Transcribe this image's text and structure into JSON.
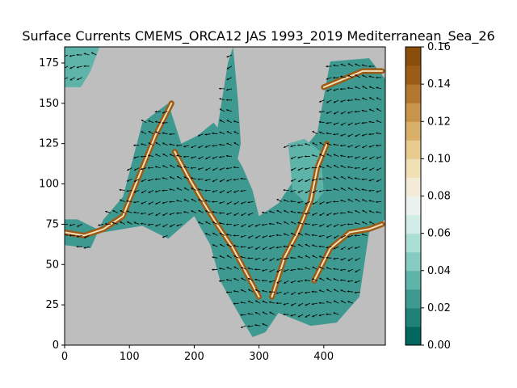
{
  "chart_data": {
    "type": "heatmap",
    "title": "Surface Currents CMEMS_ORCA12 JAS 1993_2019 Mediterranean_Sea_26",
    "xlabel": "",
    "ylabel": "",
    "xlim": [
      0,
      495
    ],
    "ylim": [
      0,
      185
    ],
    "x_ticks": [
      0,
      100,
      200,
      300,
      400
    ],
    "y_ticks": [
      0,
      25,
      50,
      75,
      100,
      125,
      150,
      175
    ],
    "x_tick_labels": [
      "0",
      "100",
      "200",
      "300",
      "400"
    ],
    "y_tick_labels": [
      "0",
      "25",
      "50",
      "75",
      "100",
      "125",
      "150",
      "175"
    ],
    "land_color": "#bebebe",
    "colorbar": {
      "min": 0.0,
      "max": 0.16,
      "ticks": [
        0.0,
        0.02,
        0.04,
        0.06,
        0.08,
        0.1,
        0.12,
        0.14,
        0.16
      ],
      "tick_labels": [
        "0.00",
        "0.02",
        "0.04",
        "0.06",
        "0.08",
        "0.10",
        "0.12",
        "0.14",
        "0.16"
      ],
      "colors": [
        "#00665e",
        "#1f8177",
        "#3e9a90",
        "#5fb4a9",
        "#86cbc1",
        "#acdfd6",
        "#d2ede8",
        "#eef2ee",
        "#f4ecd9",
        "#f1dfb6",
        "#e8cb8f",
        "#d8b06a",
        "#c8934a",
        "#b47730",
        "#9c5c18",
        "#8a4e0c"
      ]
    },
    "vectors": "quiver arrows showing surface current direction (black)"
  }
}
